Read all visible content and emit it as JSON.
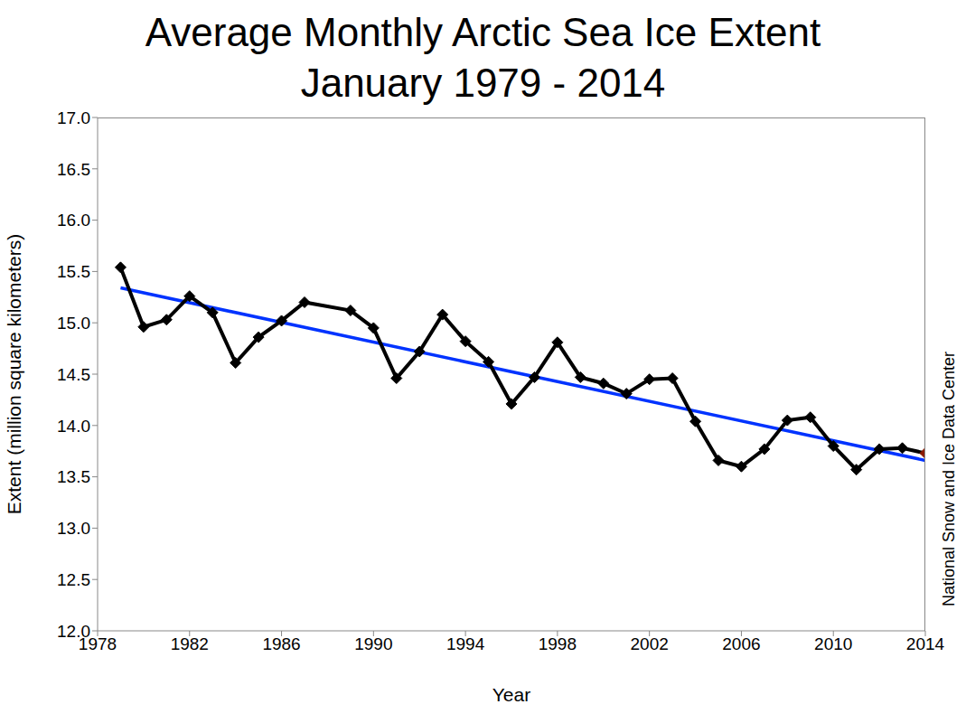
{
  "chart_data": {
    "type": "line",
    "title": "Average Monthly Arctic Sea Ice Extent",
    "subtitle": "January 1979 - 2014",
    "x_label": "Year",
    "y_label": "Extent (million square kilometers)",
    "source": "National Snow and Ice Data Center",
    "xlim": [
      1978,
      2014
    ],
    "xticks": [
      1978,
      1982,
      1986,
      1990,
      1994,
      1998,
      2002,
      2006,
      2010,
      2014
    ],
    "ylim": [
      12,
      17
    ],
    "yticks": [
      {
        "value": 12,
        "label": "12.0"
      },
      {
        "value": 12.5,
        "label": "12.5"
      },
      {
        "value": 13,
        "label": "13.0"
      },
      {
        "value": 13.5,
        "label": "13.5"
      },
      {
        "value": 14,
        "label": "14.0"
      },
      {
        "value": 14.5,
        "label": "14.5"
      },
      {
        "value": 15,
        "label": "15.0"
      },
      {
        "value": 15.5,
        "label": "15.5"
      },
      {
        "value": 16,
        "label": "16.0"
      },
      {
        "value": 16.5,
        "label": "16.5"
      },
      {
        "value": 17,
        "label": "17.0"
      }
    ],
    "grid": false,
    "series": [
      {
        "color": "#0033ff",
        "marker": "none",
        "line_style": "solid",
        "x": [
          1979,
          2014
        ],
        "values": [
          15.34,
          13.66
        ]
      },
      {
        "color": "#000000",
        "marker": "diamond",
        "line_style": "solid",
        "x": [
          1979,
          1980,
          1981,
          1982,
          1983,
          1984,
          1985,
          1986,
          1987,
          1989,
          1990,
          1991,
          1992,
          1993,
          1994,
          1995,
          1996,
          1997,
          1998,
          1999,
          2000,
          2001,
          2002,
          2003,
          2004,
          2005,
          2006,
          2007,
          2008,
          2009,
          2010,
          2011,
          2012,
          2013,
          2014
        ],
        "values": [
          15.54,
          14.96,
          15.03,
          15.26,
          15.1,
          14.61,
          14.86,
          15.02,
          15.2,
          15.12,
          14.95,
          14.46,
          14.72,
          15.08,
          14.82,
          14.62,
          14.21,
          14.47,
          14.81,
          14.47,
          14.41,
          14.31,
          14.45,
          14.46,
          14.04,
          13.66,
          13.6,
          13.77,
          14.05,
          14.08,
          13.8,
          13.57,
          13.77,
          13.78,
          13.73
        ],
        "colors": [
          "#000000",
          "#000000",
          "#000000",
          "#000000",
          "#000000",
          "#000000",
          "#000000",
          "#000000",
          "#000000",
          "#000000",
          "#000000",
          "#000000",
          "#000000",
          "#000000",
          "#000000",
          "#000000",
          "#000000",
          "#000000",
          "#000000",
          "#000000",
          "#000000",
          "#000000",
          "#000000",
          "#000000",
          "#000000",
          "#000000",
          "#000000",
          "#000000",
          "#000000",
          "#000000",
          "#000000",
          "#000000",
          "#000000",
          "#000000",
          "#8b1a00"
        ]
      }
    ]
  }
}
